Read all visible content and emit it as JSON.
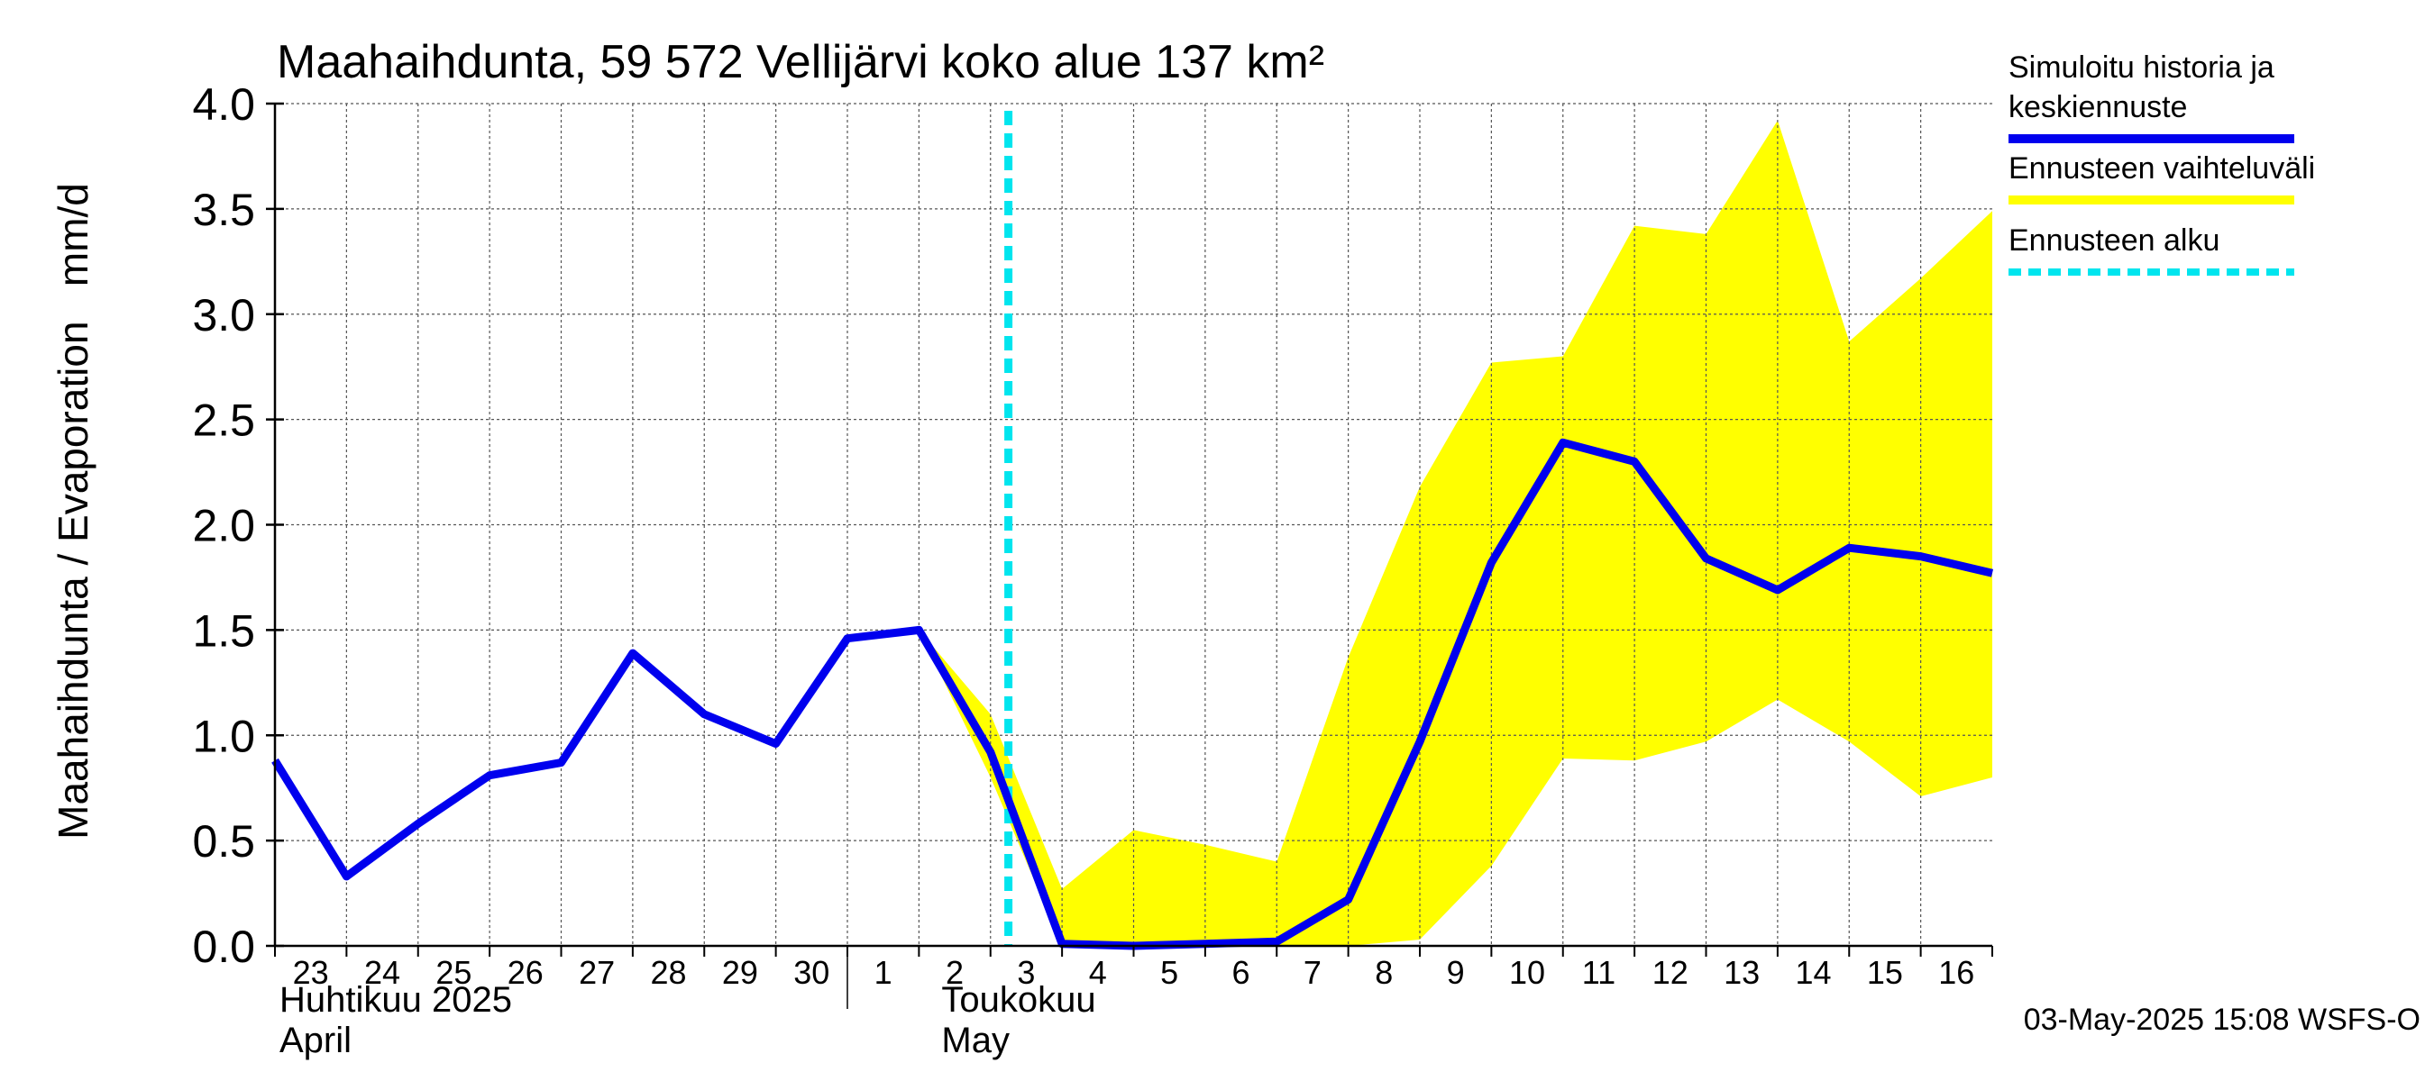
{
  "chart_data": {
    "type": "area",
    "title": "Maahaihdunta, 59 572 Vellijärvi koko alue 137 km²",
    "ylabel": "Maahaihdunta / Evaporation   mm/d",
    "ylim": [
      0,
      4
    ],
    "yticks": [
      "0.0",
      "0.5",
      "1.0",
      "1.5",
      "2.0",
      "2.5",
      "3.0",
      "3.5",
      "4.0"
    ],
    "grid": true,
    "xlim": [
      "2025-04-23",
      "2025-05-17"
    ],
    "day_ticks": [
      "23",
      "24",
      "25",
      "26",
      "27",
      "28",
      "29",
      "30",
      "1",
      "2",
      "3",
      "4",
      "5",
      "6",
      "7",
      "8",
      "9",
      "10",
      "11",
      "12",
      "13",
      "14",
      "15",
      "16"
    ],
    "month_labels": [
      {
        "fi": "Huhtikuu  2025",
        "en": "April",
        "start": "2025-04-23"
      },
      {
        "fi": "Toukokuu",
        "en": "May",
        "start": "2025-05-03"
      }
    ],
    "forecast_start": "2025-05-03T06:00",
    "series": [
      {
        "name": "Simuloitu historia ja keskiennuste",
        "color": "#0000ee",
        "x": [
          "2025-04-23",
          "2025-04-24",
          "2025-04-25",
          "2025-04-26",
          "2025-04-27",
          "2025-04-28",
          "2025-04-29",
          "2025-04-30",
          "2025-05-01",
          "2025-05-02",
          "2025-05-03",
          "2025-05-04",
          "2025-05-05",
          "2025-05-06",
          "2025-05-07",
          "2025-05-08",
          "2025-05-09",
          "2025-05-10",
          "2025-05-11",
          "2025-05-12",
          "2025-05-13",
          "2025-05-14",
          "2025-05-15",
          "2025-05-16",
          "2025-05-17"
        ],
        "values": [
          0.88,
          0.33,
          0.58,
          0.81,
          0.87,
          1.39,
          1.1,
          0.96,
          1.46,
          1.5,
          0.92,
          0.01,
          0.0,
          0.01,
          0.02,
          0.22,
          0.97,
          1.82,
          2.39,
          2.3,
          1.84,
          1.69,
          1.89,
          1.85,
          1.77
        ]
      },
      {
        "name": "Ennusteen vaihteluväli",
        "color": "#ffff00",
        "x": [
          "2025-05-02",
          "2025-05-03",
          "2025-05-04",
          "2025-05-05",
          "2025-05-06",
          "2025-05-07",
          "2025-05-08",
          "2025-05-09",
          "2025-05-10",
          "2025-05-11",
          "2025-05-12",
          "2025-05-13",
          "2025-05-14",
          "2025-05-15",
          "2025-05-16",
          "2025-05-17"
        ],
        "upper": [
          1.5,
          1.1,
          0.27,
          0.55,
          0.48,
          0.4,
          1.37,
          2.18,
          2.77,
          2.8,
          3.42,
          3.38,
          3.92,
          2.87,
          3.17,
          3.49
        ],
        "lower": [
          1.5,
          0.8,
          0.0,
          0.0,
          0.0,
          0.0,
          0.0,
          0.03,
          0.38,
          0.89,
          0.88,
          0.97,
          1.17,
          0.97,
          0.71,
          0.8
        ]
      }
    ],
    "legend": {
      "placement": "right",
      "entries": [
        {
          "label_lines": [
            "Simuloitu historia ja",
            "keskiennuste"
          ],
          "color": "#0000ee",
          "style": "solid"
        },
        {
          "label_lines": [
            "Ennusteen vaihteluväli"
          ],
          "color": "#ffff00",
          "style": "solid"
        },
        {
          "label_lines": [
            "Ennusteen alku"
          ],
          "color": "#00e5ee",
          "style": "dashed"
        }
      ]
    },
    "footer": "03-May-2025 15:08 WSFS-O"
  }
}
